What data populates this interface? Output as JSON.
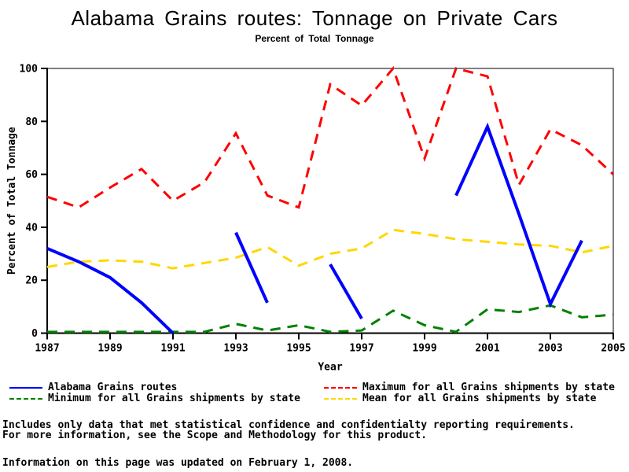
{
  "page_background": "#ffffff",
  "chart_data": {
    "type": "line",
    "title": "Alabama Grains routes: Tonnage on Private Cars",
    "subtitle": "Percent of Total Tonnage",
    "xlabel": "Year",
    "ylabel": "Percent of Total Tonnage",
    "xlim": [
      1987,
      2005
    ],
    "ylim": [
      0,
      100
    ],
    "x_ticks": [
      1987,
      1989,
      1991,
      1993,
      1995,
      1997,
      1999,
      2001,
      2003,
      2005
    ],
    "y_ticks": [
      0,
      20,
      40,
      60,
      80,
      100
    ],
    "grid": false,
    "frame": true,
    "legend_position": "bottom",
    "years": [
      1987,
      1988,
      1989,
      1990,
      1991,
      1992,
      1993,
      1994,
      1995,
      1996,
      1997,
      1998,
      1999,
      2000,
      2001,
      2002,
      2003,
      2004,
      2005
    ],
    "series": [
      {
        "name": "Alabama Grains routes",
        "color": "#0000ff",
        "style": "solid",
        "dash": "",
        "width": 4,
        "z": 4,
        "values": [
          32,
          27,
          21,
          11.5,
          0,
          null,
          38,
          11.5,
          null,
          26,
          5.5,
          null,
          null,
          52,
          78,
          45,
          11,
          35,
          null
        ]
      },
      {
        "name": "Maximum for all Grains shipments by state",
        "color": "#ff0000",
        "style": "dashed",
        "dash": "13 9",
        "width": 3,
        "z": 1,
        "values": [
          51.5,
          47.5,
          55,
          62,
          50,
          57,
          75.5,
          52,
          47.5,
          94,
          86,
          100,
          66,
          100,
          97,
          56,
          77,
          71,
          60
        ]
      },
      {
        "name": "Minimum for all Grains shipments by state",
        "color": "#008000",
        "style": "dashed",
        "dash": "13 9",
        "width": 3,
        "z": 2,
        "values": [
          0.5,
          0.5,
          0.5,
          0.5,
          0.5,
          0.5,
          3.5,
          1,
          3,
          0.5,
          1,
          8.5,
          3,
          0.5,
          9,
          8,
          10.5,
          6,
          7
        ]
      },
      {
        "name": "Mean for all Grains shipments by state",
        "color": "#ffd700",
        "style": "dashed",
        "dash": "13 9",
        "width": 3,
        "z": 3,
        "values": [
          25,
          27,
          27.5,
          27,
          24.5,
          26.5,
          28.5,
          32.5,
          25.5,
          30,
          32,
          39,
          37.5,
          35.5,
          34.5,
          33.5,
          33,
          30.5,
          33
        ]
      }
    ]
  },
  "footnotes": {
    "line1": "Includes only data that met statistical confidence and confidentialty reporting requirements.",
    "line2": "For more information, see the Scope and Methodology for this product.",
    "updated": "Information on this page was updated on February 1, 2008."
  }
}
